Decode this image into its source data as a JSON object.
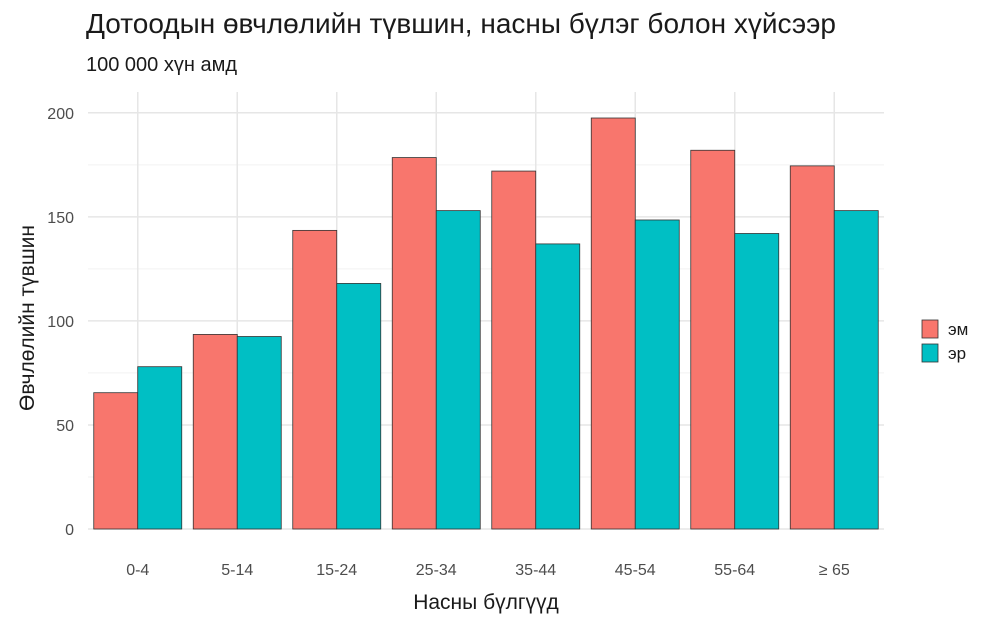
{
  "chart_data": {
    "type": "bar",
    "title": "Дотоодын өвчлөлийн түвшин, насны бүлэг болон хүйсээр",
    "subtitle": "100 000 хүн амд",
    "xlabel": "Насны бүлгүүд",
    "ylabel": "Өвчлөлийн түвшин",
    "categories": [
      "0-4",
      "5-14",
      "15-24",
      "25-34",
      "35-44",
      "45-54",
      "55-64",
      "≥ 65"
    ],
    "series": [
      {
        "name": "эм",
        "color": "#F8766D",
        "values": [
          65.5,
          93.5,
          143.5,
          178.5,
          172,
          197.5,
          182,
          174.5
        ]
      },
      {
        "name": "эр",
        "color": "#00BFC4",
        "values": [
          78,
          92.5,
          118,
          153,
          137,
          148.5,
          142,
          153
        ]
      }
    ],
    "ylim": [
      0,
      210
    ],
    "yticks": [
      0,
      50,
      100,
      150,
      200
    ],
    "grid": true,
    "legend_position": "right"
  }
}
